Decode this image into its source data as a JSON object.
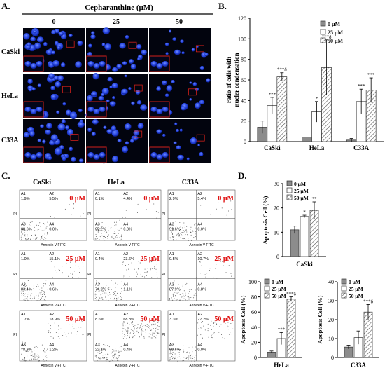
{
  "panels": {
    "A": {
      "letter": "A.",
      "header": "Cepharanthine (μM)",
      "columns": [
        "0",
        "25",
        "50"
      ],
      "rows": [
        "CaSki",
        "HeLa",
        "C33A"
      ]
    },
    "B": {
      "letter": "B.",
      "chart_data": {
        "type": "bar",
        "categories": [
          "CaSki",
          "HeLa",
          "C33A"
        ],
        "ylabel": "ratio of cells with nucler condensation",
        "xlabel": "",
        "ylim": [
          0,
          120
        ],
        "yticks": [
          0,
          20,
          40,
          60,
          80,
          100,
          120
        ],
        "legend_position": "top-right",
        "series": [
          {
            "name": "0 μM",
            "values": [
              14,
              4.5,
              1.5
            ],
            "errors": [
              6,
              2,
              1.5
            ],
            "sig": [
              "",
              "",
              ""
            ],
            "color": "#8c8c8c"
          },
          {
            "name": "25 μM",
            "values": [
              35,
              29,
              39
            ],
            "errors": [
              8,
              10,
              12
            ],
            "sig": [
              "***",
              "*",
              "***"
            ],
            "color": "#ffffff"
          },
          {
            "name": "50 μM",
            "values": [
              63,
              72,
              50
            ],
            "errors": [
              4,
              27,
              12
            ],
            "sig": [
              "***δ",
              "***δ",
              "***"
            ],
            "color": "hatch"
          }
        ]
      }
    },
    "C": {
      "letter": "C.",
      "columns": [
        "CaSki",
        "HeLa",
        "C33A"
      ],
      "dose_labels": [
        "0 μM",
        "25 μM",
        "50 μM"
      ],
      "xaxis_label": "Annexin V-FITC",
      "yaxis_label": "PI",
      "quadrant_names": [
        "A1",
        "A2",
        "A3",
        "A4"
      ],
      "plots": [
        [
          {
            "A1": "1.9%",
            "A2": "5.5%",
            "A3": "88.6%",
            "A4": "0.0%"
          },
          {
            "A1": "0.1%",
            "A2": "4.4%",
            "A3": "95.2%",
            "A4": "0.3%"
          },
          {
            "A1": "2.9%",
            "A2": "5.4%",
            "A3": "91.6%",
            "A4": "0.0%"
          }
        ],
        [
          {
            "A1": "1.0%",
            "A2": "15.1%",
            "A3": "83.4%",
            "A4": "0.6%"
          },
          {
            "A1": "0.4%",
            "A2": "23.6%",
            "A3": "74.9%",
            "A4": "1.1%"
          },
          {
            "A1": "0.5%",
            "A2": "10.7%",
            "A3": "87.9%",
            "A4": "0.8%"
          }
        ],
        [
          {
            "A1": "1.7%",
            "A2": "18.9%",
            "A3": "78.3%",
            "A4": "1.2%"
          },
          {
            "A1": "8.6%",
            "A2": "68.8%",
            "A3": "22.1%",
            "A4": "0.4%"
          },
          {
            "A1": "3.3%",
            "A2": "27.2%",
            "A3": "69.6%",
            "A4": "0.0%"
          }
        ]
      ]
    },
    "D": {
      "letter": "D.",
      "chart_data": [
        {
          "type": "bar",
          "categories": [
            "CaSki"
          ],
          "ylabel": "Apoptosis Cell (%)",
          "ylim": [
            0,
            30
          ],
          "yticks": [
            0,
            10,
            20,
            30
          ],
          "legend_position": "top-left",
          "series": [
            {
              "name": "0 μM",
              "values": [
                11
              ],
              "errors": [
                1.5
              ],
              "sig": [
                ""
              ]
            },
            {
              "name": "25 μM",
              "values": [
                16.5
              ],
              "errors": [
                0.5
              ],
              "sig": [
                "*"
              ]
            },
            {
              "name": "50 μM",
              "values": [
                19
              ],
              "errors": [
                3.5
              ],
              "sig": [
                "**"
              ]
            }
          ]
        },
        {
          "type": "bar",
          "categories": [
            "HeLa"
          ],
          "ylabel": "Apoptosis Cell (%)",
          "ylim": [
            0,
            100
          ],
          "yticks": [
            0,
            20,
            40,
            60,
            80,
            100
          ],
          "legend_position": "top-left",
          "series": [
            {
              "name": "0 μM",
              "values": [
                7
              ],
              "errors": [
                1.5
              ],
              "sig": [
                ""
              ]
            },
            {
              "name": "25 μM",
              "values": [
                25
              ],
              "errors": [
                8
              ],
              "sig": [
                "***"
              ]
            },
            {
              "name": "50 μM",
              "values": [
                77
              ],
              "errors": [
                3
              ],
              "sig": [
                "***δ"
              ]
            }
          ]
        },
        {
          "type": "bar",
          "categories": [
            "C33A"
          ],
          "ylabel": "Apoptosis Cell (%)",
          "ylim": [
            0,
            40
          ],
          "yticks": [
            0,
            10,
            20,
            30,
            40
          ],
          "legend_position": "top-left",
          "series": [
            {
              "name": "0 μM",
              "values": [
                5.5
              ],
              "errors": [
                1
              ],
              "sig": [
                ""
              ]
            },
            {
              "name": "25 μM",
              "values": [
                10.5
              ],
              "errors": [
                3.5
              ],
              "sig": [
                ""
              ]
            },
            {
              "name": "50 μM",
              "values": [
                24
              ],
              "errors": [
                4
              ],
              "sig": [
                "***δ"
              ]
            }
          ]
        }
      ]
    }
  }
}
